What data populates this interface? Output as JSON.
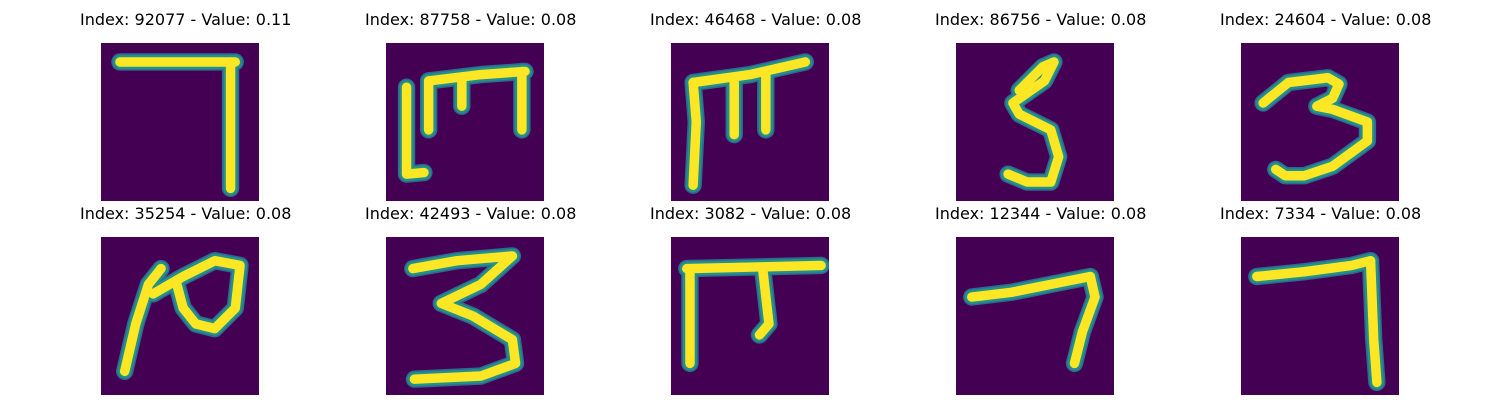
{
  "colors": {
    "background": "#440154",
    "foreground": "#fde725",
    "edge_mid": "#21918c",
    "edge_dark": "#31688e"
  },
  "panels": [
    {
      "title": "Index: 92077 - Value: 0.11",
      "depicts": "digit 7 stroke",
      "strokes": [
        [
          [
            0.12,
            0.12
          ],
          [
            0.85,
            0.12
          ]
        ],
        [
          [
            0.82,
            0.12
          ],
          [
            0.82,
            0.92
          ]
        ]
      ]
    },
    {
      "title": "Index: 87758 - Value: 0.08",
      "depicts": "rotated digit 3 (m-shape) stroke",
      "strokes": [
        [
          [
            0.13,
            0.28
          ],
          [
            0.13,
            0.83
          ],
          [
            0.24,
            0.82
          ]
        ],
        [
          [
            0.27,
            0.24
          ],
          [
            0.27,
            0.55
          ]
        ],
        [
          [
            0.27,
            0.24
          ],
          [
            0.6,
            0.2
          ],
          [
            0.88,
            0.18
          ]
        ],
        [
          [
            0.48,
            0.22
          ],
          [
            0.48,
            0.4
          ]
        ],
        [
          [
            0.86,
            0.18
          ],
          [
            0.86,
            0.55
          ]
        ]
      ]
    },
    {
      "title": "Index: 46468 - Value: 0.08",
      "depicts": "rotated digit 3 (m-shape) stroke",
      "strokes": [
        [
          [
            0.14,
            0.25
          ],
          [
            0.16,
            0.5
          ],
          [
            0.14,
            0.9
          ]
        ],
        [
          [
            0.14,
            0.25
          ],
          [
            0.5,
            0.2
          ],
          [
            0.85,
            0.12
          ]
        ],
        [
          [
            0.4,
            0.22
          ],
          [
            0.4,
            0.58
          ]
        ],
        [
          [
            0.6,
            0.2
          ],
          [
            0.6,
            0.55
          ]
        ]
      ]
    },
    {
      "title": "Index: 86756 - Value: 0.08",
      "depicts": "digit 5 stroke",
      "strokes": [
        [
          [
            0.4,
            0.3
          ],
          [
            0.55,
            0.15
          ],
          [
            0.62,
            0.12
          ],
          [
            0.56,
            0.24
          ],
          [
            0.36,
            0.38
          ],
          [
            0.4,
            0.45
          ],
          [
            0.6,
            0.55
          ],
          [
            0.65,
            0.72
          ],
          [
            0.6,
            0.88
          ],
          [
            0.45,
            0.88
          ],
          [
            0.33,
            0.83
          ]
        ]
      ]
    },
    {
      "title": "Index: 24604 - Value: 0.08",
      "depicts": "digit 3 stroke",
      "strokes": [
        [
          [
            0.14,
            0.38
          ],
          [
            0.3,
            0.25
          ],
          [
            0.55,
            0.22
          ],
          [
            0.62,
            0.26
          ],
          [
            0.58,
            0.35
          ],
          [
            0.48,
            0.4
          ],
          [
            0.58,
            0.42
          ],
          [
            0.8,
            0.5
          ],
          [
            0.8,
            0.62
          ],
          [
            0.58,
            0.78
          ],
          [
            0.4,
            0.84
          ],
          [
            0.28,
            0.84
          ],
          [
            0.22,
            0.8
          ]
        ]
      ]
    },
    {
      "title": "Index: 35254 - Value: 0.08",
      "depicts": "rotated digit 2 stroke",
      "strokes": [
        [
          [
            0.15,
            0.85
          ],
          [
            0.22,
            0.55
          ],
          [
            0.3,
            0.3
          ],
          [
            0.38,
            0.2
          ]
        ],
        [
          [
            0.33,
            0.36
          ],
          [
            0.52,
            0.25
          ],
          [
            0.72,
            0.15
          ],
          [
            0.88,
            0.18
          ],
          [
            0.85,
            0.45
          ],
          [
            0.72,
            0.58
          ],
          [
            0.6,
            0.55
          ],
          [
            0.52,
            0.45
          ],
          [
            0.48,
            0.3
          ]
        ]
      ]
    },
    {
      "title": "Index: 42493 - Value: 0.08",
      "depicts": "digit 3 stroke",
      "strokes": [
        [
          [
            0.17,
            0.2
          ],
          [
            0.45,
            0.15
          ],
          [
            0.8,
            0.12
          ],
          [
            0.6,
            0.3
          ],
          [
            0.35,
            0.42
          ],
          [
            0.55,
            0.5
          ],
          [
            0.8,
            0.65
          ],
          [
            0.82,
            0.8
          ],
          [
            0.6,
            0.88
          ],
          [
            0.18,
            0.9
          ]
        ]
      ]
    },
    {
      "title": "Index: 3082 - Value: 0.08",
      "depicts": "rotated digit 3 (m-shape) stroke",
      "strokes": [
        [
          [
            0.1,
            0.2
          ],
          [
            0.95,
            0.18
          ]
        ],
        [
          [
            0.12,
            0.2
          ],
          [
            0.12,
            0.8
          ]
        ],
        [
          [
            0.58,
            0.2
          ],
          [
            0.62,
            0.55
          ],
          [
            0.56,
            0.62
          ]
        ]
      ]
    },
    {
      "title": "Index: 12344 - Value: 0.08",
      "depicts": "digit 7 stroke",
      "strokes": [
        [
          [
            0.1,
            0.38
          ],
          [
            0.35,
            0.35
          ],
          [
            0.6,
            0.3
          ],
          [
            0.85,
            0.25
          ],
          [
            0.88,
            0.38
          ],
          [
            0.8,
            0.6
          ],
          [
            0.75,
            0.8
          ]
        ]
      ]
    },
    {
      "title": "Index: 7334 - Value: 0.08",
      "depicts": "digit 7 stroke",
      "strokes": [
        [
          [
            0.1,
            0.25
          ],
          [
            0.4,
            0.22
          ],
          [
            0.7,
            0.18
          ],
          [
            0.82,
            0.15
          ]
        ],
        [
          [
            0.82,
            0.15
          ],
          [
            0.84,
            0.65
          ],
          [
            0.86,
            0.92
          ]
        ]
      ]
    }
  ]
}
